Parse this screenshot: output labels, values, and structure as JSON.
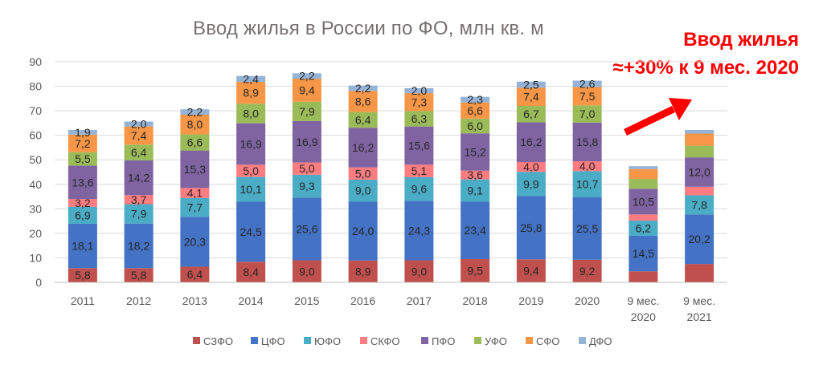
{
  "chart_data": {
    "type": "bar",
    "stacked": true,
    "title": "Ввод жилья в России по ФО, млн кв. м",
    "xlabel": "",
    "ylabel": "",
    "ylim": [
      0,
      90
    ],
    "yticks": [
      0,
      10,
      20,
      30,
      40,
      50,
      60,
      70,
      80,
      90
    ],
    "grid": true,
    "legend_position": "bottom",
    "categories": [
      "2011",
      "2012",
      "2013",
      "2014",
      "2015",
      "2016",
      "2017",
      "2018",
      "2019",
      "2020",
      "9 мес.\n2020",
      "9 мес.\n2021"
    ],
    "series": [
      {
        "name": "СЗФО",
        "color": "#c0504d",
        "values": [
          5.8,
          5.8,
          6.4,
          8.4,
          9.0,
          8.9,
          9.0,
          9.5,
          9.4,
          9.2,
          4.5,
          7.5
        ],
        "labels": [
          "5,8",
          "5,8",
          "6,4",
          "8,4",
          "9,0",
          "8,9",
          "9,0",
          "9,5",
          "9,4",
          "9,2",
          "",
          ""
        ]
      },
      {
        "name": "ЦФО",
        "color": "#4472c4",
        "values": [
          18.1,
          18.2,
          20.3,
          24.5,
          25.6,
          24.0,
          24.3,
          23.4,
          25.8,
          25.5,
          14.5,
          20.2
        ],
        "labels": [
          "18,1",
          "18,2",
          "20,3",
          "24,5",
          "25,6",
          "24,0",
          "24,3",
          "23,4",
          "25,8",
          "25,5",
          "14,5",
          "20,2"
        ]
      },
      {
        "name": "ЮФО",
        "color": "#4bacc6",
        "values": [
          6.9,
          7.9,
          7.7,
          10.1,
          9.3,
          9.0,
          9.6,
          9.1,
          9.9,
          10.7,
          6.2,
          7.8
        ],
        "labels": [
          "6,9",
          "7,9",
          "7,7",
          "10,1",
          "9,3",
          "9,0",
          "9,6",
          "9,1",
          "9,9",
          "10,7",
          "6,2",
          "7,8"
        ]
      },
      {
        "name": "СКФО",
        "color": "#ff7c80",
        "values": [
          3.2,
          3.7,
          4.1,
          5.0,
          5.0,
          5.0,
          5.1,
          3.6,
          4.0,
          4.0,
          2.5,
          3.5
        ],
        "labels": [
          "3,2",
          "3,7",
          "4,1",
          "5,0",
          "5,0",
          "5,0",
          "5,1",
          "3,6",
          "4,0",
          "4,0",
          "",
          ""
        ]
      },
      {
        "name": "ПФО",
        "color": "#8064a2",
        "values": [
          13.6,
          14.2,
          15.3,
          16.9,
          16.9,
          16.2,
          15.6,
          15.2,
          16.2,
          15.8,
          10.5,
          12.0
        ],
        "labels": [
          "13,6",
          "14,2",
          "15,3",
          "16,9",
          "16,9",
          "16,2",
          "15,6",
          "15,2",
          "16,2",
          "15,8",
          "10,5",
          "12,0"
        ]
      },
      {
        "name": "УФО",
        "color": "#9bbb59",
        "values": [
          5.5,
          6.4,
          6.6,
          8.0,
          7.9,
          6.4,
          6.3,
          6.0,
          6.7,
          7.0,
          4.0,
          4.7
        ],
        "labels": [
          "5,5",
          "6,4",
          "6,6",
          "8,0",
          "7,9",
          "6,4",
          "6,3",
          "6,0",
          "6,7",
          "7,0",
          "",
          ""
        ]
      },
      {
        "name": "СФО",
        "color": "#f79646",
        "values": [
          7.2,
          7.4,
          8.0,
          8.9,
          9.4,
          8.6,
          7.3,
          6.6,
          7.4,
          7.5,
          4.0,
          5.0
        ],
        "labels": [
          "7,2",
          "7,4",
          "8,0",
          "8,9",
          "9,4",
          "8,6",
          "7,3",
          "6,6",
          "7,4",
          "7,5",
          "",
          ""
        ]
      },
      {
        "name": "ДФО",
        "color": "#95b3d7",
        "values": [
          1.9,
          2.0,
          2.2,
          2.4,
          2.2,
          2.2,
          2.0,
          2.3,
          2.5,
          2.6,
          1.2,
          1.5
        ],
        "labels": [
          "1,9",
          "2,0",
          "2,2",
          "2,4",
          "2,2",
          "2,2",
          "2,0",
          "2,3",
          "2,5",
          "2,6",
          "",
          ""
        ]
      }
    ],
    "annotation": {
      "line1": "Ввод жилья",
      "line2": "≈+30% к 9 мес. 2020",
      "color": "#ff0000",
      "arrow": "red arrow pointing up-right to the 9 мес. 2021 bar"
    }
  },
  "colors": {
    "axis_text": "#595959",
    "title": "#767171",
    "grid": "#d9d9d9"
  }
}
